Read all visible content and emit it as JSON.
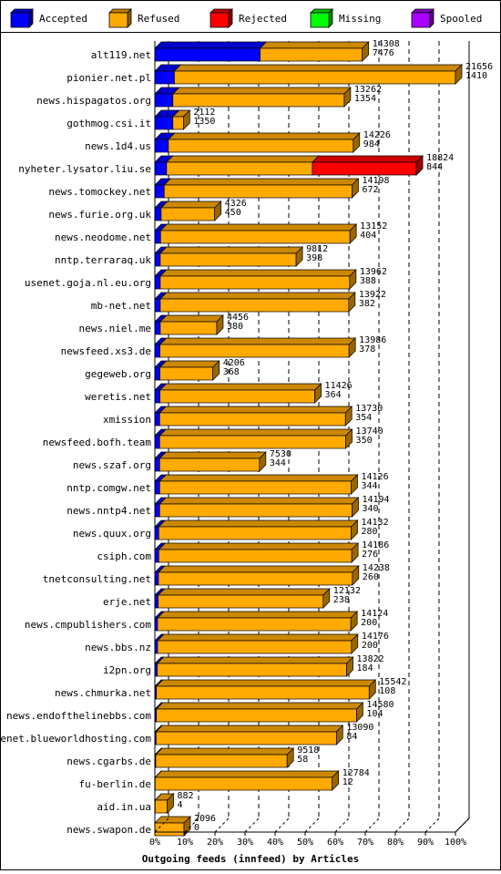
{
  "chart_data": {
    "type": "bar",
    "orientation": "horizontal",
    "stacked": true,
    "title": "",
    "xlabel": "Outgoing feeds (innfeed) by Articles",
    "ylabel": "",
    "xlim": [
      0,
      100
    ],
    "x_unit": "%",
    "x_ticks": [
      "0%",
      "10%",
      "20%",
      "30%",
      "40%",
      "50%",
      "60%",
      "70%",
      "80%",
      "90%",
      "100%"
    ],
    "legend_position": "top",
    "grid": "vertical dashed",
    "series": [
      {
        "name": "Accepted",
        "color": "#0000ff"
      },
      {
        "name": "Refused",
        "color": "#ffaa00"
      },
      {
        "name": "Rejected",
        "color": "#ff0000"
      },
      {
        "name": "Missing",
        "color": "#00ff00"
      },
      {
        "name": "Spooled",
        "color": "#aa00ff"
      }
    ],
    "rows": [
      {
        "host": "alt119.net",
        "offered": "14308",
        "accepted": "7476",
        "acc": 35,
        "ref": 34,
        "rej": 0,
        "spo": 0
      },
      {
        "host": "pionier.net.pl",
        "offered": "21656",
        "accepted": "1410",
        "acc": 6.5,
        "ref": 93.5,
        "rej": 0,
        "spo": 0
      },
      {
        "host": "news.hispagatos.org",
        "offered": "13262",
        "accepted": "1354",
        "acc": 6,
        "ref": 57,
        "rej": 0,
        "spo": 0
      },
      {
        "host": "gothmog.csi.it",
        "offered": "2112",
        "accepted": "1350",
        "acc": 6,
        "ref": 3.5,
        "rej": 0,
        "spo": 0
      },
      {
        "host": "news.1d4.us",
        "offered": "14226",
        "accepted": "984",
        "acc": 4.5,
        "ref": 61.5,
        "rej": 0,
        "spo": 0
      },
      {
        "host": "nyheter.lysator.liu.se",
        "offered": "18824",
        "accepted": "844",
        "acc": 3.9,
        "ref": 48.5,
        "rej": 34.6,
        "spo": 0
      },
      {
        "host": "news.tomockey.net",
        "offered": "14198",
        "accepted": "672",
        "acc": 3.1,
        "ref": 62.5,
        "rej": 0,
        "spo": 0
      },
      {
        "host": "news.furie.org.uk",
        "offered": "4326",
        "accepted": "450",
        "acc": 2.1,
        "ref": 17.8,
        "rej": 0,
        "spo": 0
      },
      {
        "host": "news.neodome.net",
        "offered": "13152",
        "accepted": "404",
        "acc": 1.9,
        "ref": 63,
        "rej": 0,
        "spo": 0
      },
      {
        "host": "nntp.terraraq.uk",
        "offered": "9812",
        "accepted": "398",
        "acc": 1.8,
        "ref": 45.2,
        "rej": 0,
        "spo": 0
      },
      {
        "host": "usenet.goja.nl.eu.org",
        "offered": "13962",
        "accepted": "388",
        "acc": 1.8,
        "ref": 63,
        "rej": 0,
        "spo": 0
      },
      {
        "host": "mb-net.net",
        "offered": "13922",
        "accepted": "382",
        "acc": 1.8,
        "ref": 62.7,
        "rej": 0,
        "spo": 0
      },
      {
        "host": "news.niel.me",
        "offered": "4456",
        "accepted": "380",
        "acc": 1.8,
        "ref": 18.8,
        "rej": 0,
        "spo": 0
      },
      {
        "host": "newsfeed.xs3.de",
        "offered": "13986",
        "accepted": "378",
        "acc": 1.7,
        "ref": 62.9,
        "rej": 0,
        "spo": 0
      },
      {
        "host": "gegeweb.org",
        "offered": "4206",
        "accepted": "368",
        "acc": 1.7,
        "ref": 17.6,
        "rej": 0,
        "spo": 0
      },
      {
        "host": "weretis.net",
        "offered": "11426",
        "accepted": "364",
        "acc": 1.7,
        "ref": 51.5,
        "rej": 0,
        "spo": 0
      },
      {
        "host": "xmission",
        "offered": "13730",
        "accepted": "354",
        "acc": 1.6,
        "ref": 61.8,
        "rej": 0,
        "spo": 0
      },
      {
        "host": "newsfeed.bofh.team",
        "offered": "13740",
        "accepted": "350",
        "acc": 1.6,
        "ref": 61.9,
        "rej": 0,
        "spo": 0
      },
      {
        "host": "news.szaf.org",
        "offered": "7530",
        "accepted": "344",
        "acc": 1.6,
        "ref": 33.2,
        "rej": 0,
        "spo": 0
      },
      {
        "host": "nntp.comgw.net",
        "offered": "14126",
        "accepted": "344",
        "acc": 1.6,
        "ref": 63.7,
        "rej": 0,
        "spo": 0
      },
      {
        "host": "news.nntp4.net",
        "offered": "14194",
        "accepted": "340",
        "acc": 1.6,
        "ref": 64,
        "rej": 0,
        "spo": 0
      },
      {
        "host": "news.quux.org",
        "offered": "14132",
        "accepted": "280",
        "acc": 1.3,
        "ref": 64,
        "rej": 0,
        "spo": 0
      },
      {
        "host": "csiph.com",
        "offered": "14186",
        "accepted": "276",
        "acc": 1.3,
        "ref": 64.2,
        "rej": 0,
        "spo": 0
      },
      {
        "host": "tnetconsulting.net",
        "offered": "14238",
        "accepted": "260",
        "acc": 1.2,
        "ref": 64.5,
        "rej": 0,
        "spo": 0
      },
      {
        "host": "erje.net",
        "offered": "12132",
        "accepted": "238",
        "acc": 1.1,
        "ref": 54.9,
        "rej": 0,
        "spo": 0
      },
      {
        "host": "news.cmpublishers.com",
        "offered": "14124",
        "accepted": "200",
        "acc": 0.9,
        "ref": 64.3,
        "rej": 0,
        "spo": 0
      },
      {
        "host": "news.bbs.nz",
        "offered": "14176",
        "accepted": "200",
        "acc": 0.9,
        "ref": 64.5,
        "rej": 0,
        "spo": 0
      },
      {
        "host": "i2pn.org",
        "offered": "13822",
        "accepted": "184",
        "acc": 0.8,
        "ref": 63,
        "rej": 0,
        "spo": 0
      },
      {
        "host": "news.chmurka.net",
        "offered": "15542",
        "accepted": "108",
        "acc": 0.5,
        "ref": 70.8,
        "rej": 0,
        "spo": 0
      },
      {
        "host": "news.endofthelinebbs.com",
        "offered": "14580",
        "accepted": "104",
        "acc": 0.5,
        "ref": 66.6,
        "rej": 0,
        "spo": 0
      },
      {
        "host": "usenet.blueworldhosting.com",
        "offered": "13090",
        "accepted": "84",
        "acc": 0.4,
        "ref": 60,
        "rej": 0,
        "spo": 0
      },
      {
        "host": "news.cgarbs.de",
        "offered": "9518",
        "accepted": "58",
        "acc": 0.3,
        "ref": 43.7,
        "rej": 0,
        "spo": 0
      },
      {
        "host": "fu-berlin.de",
        "offered": "12784",
        "accepted": "12",
        "acc": 0.1,
        "ref": 58.9,
        "rej": 0,
        "spo": 0
      },
      {
        "host": "aid.in.ua",
        "offered": "882",
        "accepted": "4",
        "acc": 0.1,
        "ref": 4,
        "rej": 0,
        "spo": 0
      },
      {
        "host": "news.swapon.de",
        "offered": "2096",
        "accepted": "0",
        "acc": 0,
        "ref": 9.7,
        "rej": 0,
        "spo": 0
      }
    ]
  }
}
